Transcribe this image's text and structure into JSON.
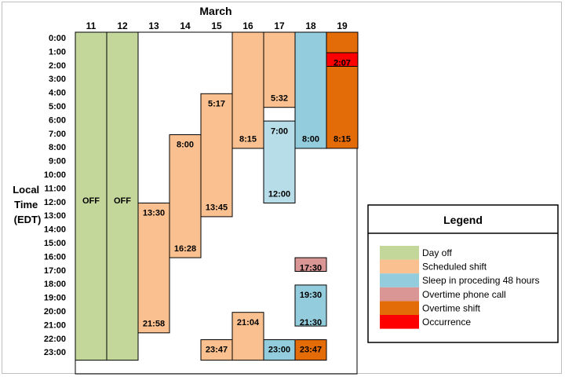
{
  "title": "March",
  "y_axis_label": [
    "Local",
    "Time",
    "(EDT)"
  ],
  "days": [
    "11",
    "12",
    "13",
    "14",
    "15",
    "16",
    "17",
    "18",
    "19"
  ],
  "hours": [
    "0:00",
    "1:00",
    "2:00",
    "3:00",
    "4:00",
    "5:00",
    "6:00",
    "7:00",
    "8:00",
    "9:00",
    "10:00",
    "11:00",
    "12:00",
    "13:00",
    "14:00",
    "15:00",
    "16:00",
    "17:00",
    "18:00",
    "19:00",
    "20:00",
    "21:00",
    "22:00",
    "23:00"
  ],
  "legend": {
    "title": "Legend",
    "items": [
      {
        "key": "day_off",
        "label": "Day off",
        "color": "#c4d79b"
      },
      {
        "key": "scheduled",
        "label": "Scheduled shift",
        "color": "#fac090"
      },
      {
        "key": "sleep",
        "label": "Sleep in proceding 48 hours",
        "color": "#93cddd"
      },
      {
        "key": "ot_call",
        "label": "Overtime phone call",
        "color": "#da9694"
      },
      {
        "key": "ot_shift",
        "label": "Overtime shift",
        "color": "#e36c09"
      },
      {
        "key": "occurrence",
        "label": "Occurrence",
        "color": "#ff0000"
      }
    ]
  },
  "blocks": [
    {
      "day": "11",
      "start": 0,
      "end": 24,
      "type": "day_off",
      "labels": [
        {
          "text": "OFF",
          "at": 12.3
        }
      ]
    },
    {
      "day": "12",
      "start": 0,
      "end": 24,
      "type": "day_off",
      "labels": [
        {
          "text": "OFF",
          "at": 12.3
        }
      ]
    },
    {
      "day": "13",
      "start": 12.5,
      "end": 22,
      "type": "scheduled",
      "labels": [
        {
          "text": "13:30",
          "at": 13.2
        },
        {
          "text": "21:58",
          "at": 21.3
        }
      ]
    },
    {
      "day": "14",
      "start": 7.5,
      "end": 16.5,
      "type": "scheduled",
      "labels": [
        {
          "text": "8:00",
          "at": 8.2
        },
        {
          "text": "16:28",
          "at": 15.8
        }
      ]
    },
    {
      "day": "15",
      "start": 4.5,
      "end": 13.5,
      "type": "scheduled",
      "labels": [
        {
          "text": "5:17",
          "at": 5.2
        },
        {
          "text": "13:45",
          "at": 12.8
        }
      ]
    },
    {
      "day": "15",
      "start": 22.5,
      "end": 24,
      "type": "scheduled",
      "labels": [
        {
          "text": "23:47",
          "at": 23.2
        }
      ]
    },
    {
      "day": "16",
      "start": 0,
      "end": 8.5,
      "type": "scheduled",
      "labels": [
        {
          "text": "8:15",
          "at": 7.8
        }
      ]
    },
    {
      "day": "16",
      "start": 20.5,
      "end": 24,
      "type": "scheduled",
      "labels": [
        {
          "text": "21:04",
          "at": 21.2
        }
      ]
    },
    {
      "day": "17",
      "start": 0,
      "end": 5.5,
      "type": "scheduled",
      "labels": [
        {
          "text": "5:32",
          "at": 4.8
        }
      ]
    },
    {
      "day": "17",
      "start": 6.5,
      "end": 12.5,
      "type": "sleep_light",
      "labels": [
        {
          "text": "7:00",
          "at": 7.2
        },
        {
          "text": "12:00",
          "at": 11.8
        }
      ]
    },
    {
      "day": "17",
      "start": 22.5,
      "end": 24,
      "type": "sleep",
      "labels": [
        {
          "text": "23:00",
          "at": 23.2
        }
      ]
    },
    {
      "day": "18",
      "start": 0,
      "end": 8.5,
      "type": "sleep",
      "labels": [
        {
          "text": "8:00",
          "at": 7.8
        }
      ]
    },
    {
      "day": "18",
      "start": 16.5,
      "end": 17.5,
      "type": "ot_call",
      "labels": [
        {
          "text": "17:30",
          "at": 17.2
        }
      ]
    },
    {
      "day": "18",
      "start": 18.5,
      "end": 21.5,
      "type": "sleep",
      "labels": [
        {
          "text": "19:30",
          "at": 19.2
        },
        {
          "text": "21:30",
          "at": 21.2
        }
      ]
    },
    {
      "day": "18",
      "start": 22.5,
      "end": 24,
      "type": "ot_shift",
      "labels": [
        {
          "text": "23:47",
          "at": 23.2
        }
      ]
    },
    {
      "day": "19",
      "start": 0,
      "end": 8.5,
      "type": "ot_shift",
      "labels": [
        {
          "text": "8:15",
          "at": 7.8
        }
      ]
    },
    {
      "day": "19",
      "start": 1.5,
      "end": 2.5,
      "type": "occurrence",
      "labels": [
        {
          "text": "2:07",
          "at": 2.2
        }
      ]
    }
  ],
  "colors": {
    "day_off": "#c4d79b",
    "scheduled": "#fac090",
    "sleep": "#93cddd",
    "sleep_light": "#b7dde8",
    "ot_call": "#da9694",
    "ot_shift": "#e36c09",
    "occurrence": "#ff0000"
  }
}
